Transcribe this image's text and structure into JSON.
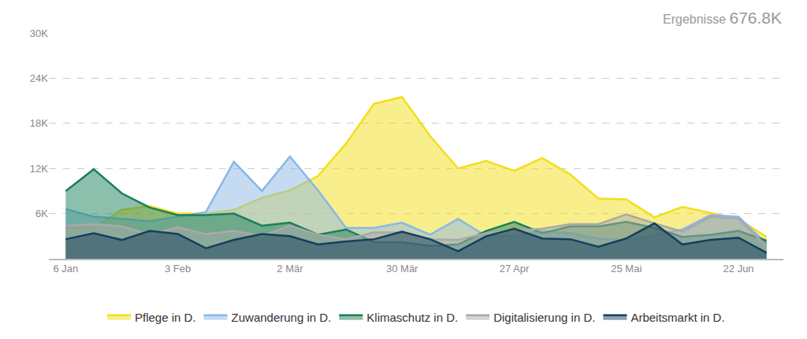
{
  "chart_data": {
    "type": "area",
    "annotations": [
      {
        "text": "Ergebnisse"
      },
      {
        "text": "676.8K"
      }
    ],
    "categories": [
      "6 Jan",
      null,
      null,
      null,
      "3 Feb",
      null,
      null,
      null,
      "2 Mär",
      null,
      null,
      null,
      "30 Mär",
      null,
      null,
      null,
      "27 Apr",
      null,
      null,
      null,
      "25 Mai",
      null,
      null,
      null,
      "22 Jun",
      null
    ],
    "series": [
      {
        "name": "Pflege in D.",
        "color": "#f2df1a",
        "values": [
          4100,
          4100,
          6500,
          7000,
          6000,
          6000,
          6500,
          8100,
          9100,
          11000,
          15300,
          20600,
          21500,
          16300,
          12000,
          13000,
          11700,
          13400,
          11200,
          8000,
          7900,
          5500,
          6900,
          6100,
          5300,
          2900
        ]
      },
      {
        "name": "Zuwanderung in D.",
        "color": "#8ab8e6",
        "values": [
          6600,
          5600,
          5300,
          5000,
          5600,
          6200,
          12900,
          9000,
          13600,
          9100,
          4100,
          4100,
          4800,
          3200,
          5300,
          3000,
          3000,
          3700,
          3400,
          2700,
          2400,
          3100,
          3900,
          5800,
          5600,
          2000
        ]
      },
      {
        "name": "Klimaschutz in D.",
        "color": "#1b7f5b",
        "values": [
          9000,
          11900,
          8700,
          6800,
          5800,
          5800,
          6000,
          4400,
          4800,
          3200,
          3900,
          2200,
          2200,
          1700,
          1900,
          3700,
          4900,
          3400,
          4300,
          4300,
          4900,
          4100,
          2900,
          3200,
          3700,
          2400
        ]
      },
      {
        "name": "Digitalisierung in D.",
        "color": "#a9a9a9",
        "values": [
          4400,
          4600,
          4300,
          3200,
          4200,
          3300,
          3700,
          3000,
          4400,
          3200,
          2600,
          3500,
          3500,
          2600,
          2500,
          3400,
          3700,
          4000,
          4600,
          4600,
          5900,
          4700,
          3600,
          5600,
          5300,
          1700
        ]
      },
      {
        "name": "Arbeitsmarkt in D.",
        "color": "#163f5e",
        "values": [
          2600,
          3400,
          2500,
          3700,
          3300,
          1400,
          2500,
          3300,
          3000,
          1900,
          2300,
          2600,
          3600,
          2600,
          1000,
          3000,
          4000,
          2700,
          2600,
          1600,
          2700,
          4700,
          1900,
          2500,
          2800,
          800
        ]
      }
    ],
    "ylim": [
      0,
      30000
    ],
    "yticks": [
      {
        "value": 6000,
        "label": "6K"
      },
      {
        "value": 12000,
        "label": "12K"
      },
      {
        "value": 18000,
        "label": "18K"
      },
      {
        "value": 24000,
        "label": "24K"
      },
      {
        "value": 30000,
        "label": "30K"
      }
    ],
    "grid": true,
    "legend": "bottom"
  }
}
